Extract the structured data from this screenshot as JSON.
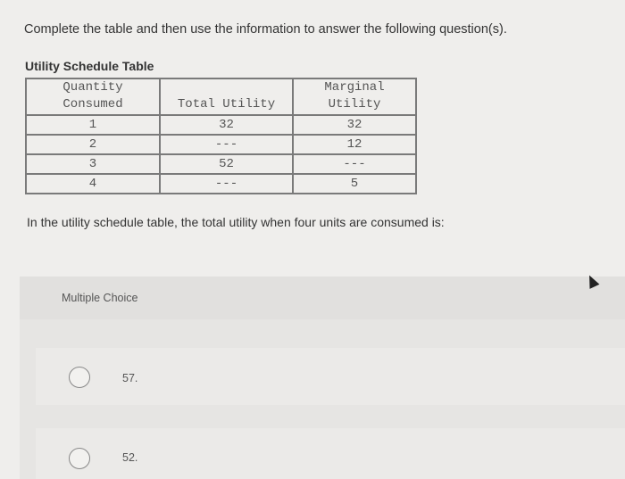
{
  "instructions": "Complete the table and then use the information to answer the following question(s).",
  "table": {
    "title": "Utility Schedule Table",
    "headers": [
      [
        "Quantity",
        "Consumed"
      ],
      [
        "",
        "Total Utility"
      ],
      [
        "Marginal",
        "Utility"
      ]
    ],
    "rows": [
      [
        "1",
        "32",
        "32"
      ],
      [
        "2",
        "---",
        "12"
      ],
      [
        "3",
        "52",
        "---"
      ],
      [
        "4",
        "---",
        "5"
      ]
    ]
  },
  "question": "In the utility schedule table, the total utility when four units are consumed is:",
  "multiple_choice": {
    "label": "Multiple Choice",
    "options": [
      "57.",
      "52."
    ]
  }
}
